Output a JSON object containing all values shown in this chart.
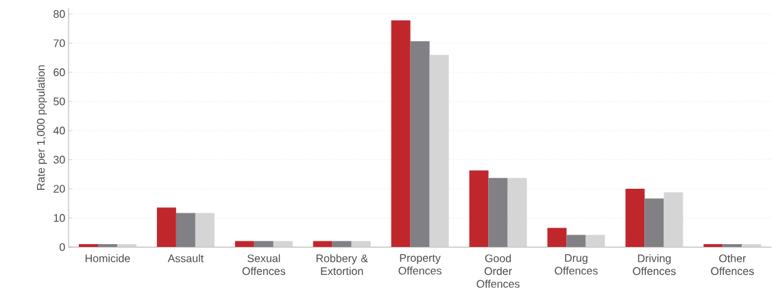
{
  "chart_data": {
    "type": "bar",
    "ylabel": "Rate per 1,000 population",
    "categories": [
      "Homicide",
      "Assault",
      "Sexual Offences",
      "Robbery & Extortion",
      "Property Offences",
      "Good Order Offences",
      "Drug Offences",
      "Driving Offences",
      "Other Offences"
    ],
    "series": [
      {
        "color": "#c0272d",
        "values": [
          1,
          13.6,
          2.1,
          2.1,
          77.9,
          26.3,
          6.6,
          20,
          1
        ]
      },
      {
        "color": "#808085",
        "values": [
          1,
          11.7,
          2.1,
          2.1,
          70.7,
          23.7,
          4.2,
          16.7,
          1
        ]
      },
      {
        "color": "#d5d5d5",
        "values": [
          1,
          11.7,
          2.1,
          2.1,
          66,
          23.7,
          4.2,
          18.8,
          1
        ]
      }
    ],
    "ylim": [
      0,
      82
    ],
    "yticks": [
      0,
      10,
      20,
      30,
      40,
      50,
      60,
      70,
      80
    ],
    "grid": "y"
  }
}
